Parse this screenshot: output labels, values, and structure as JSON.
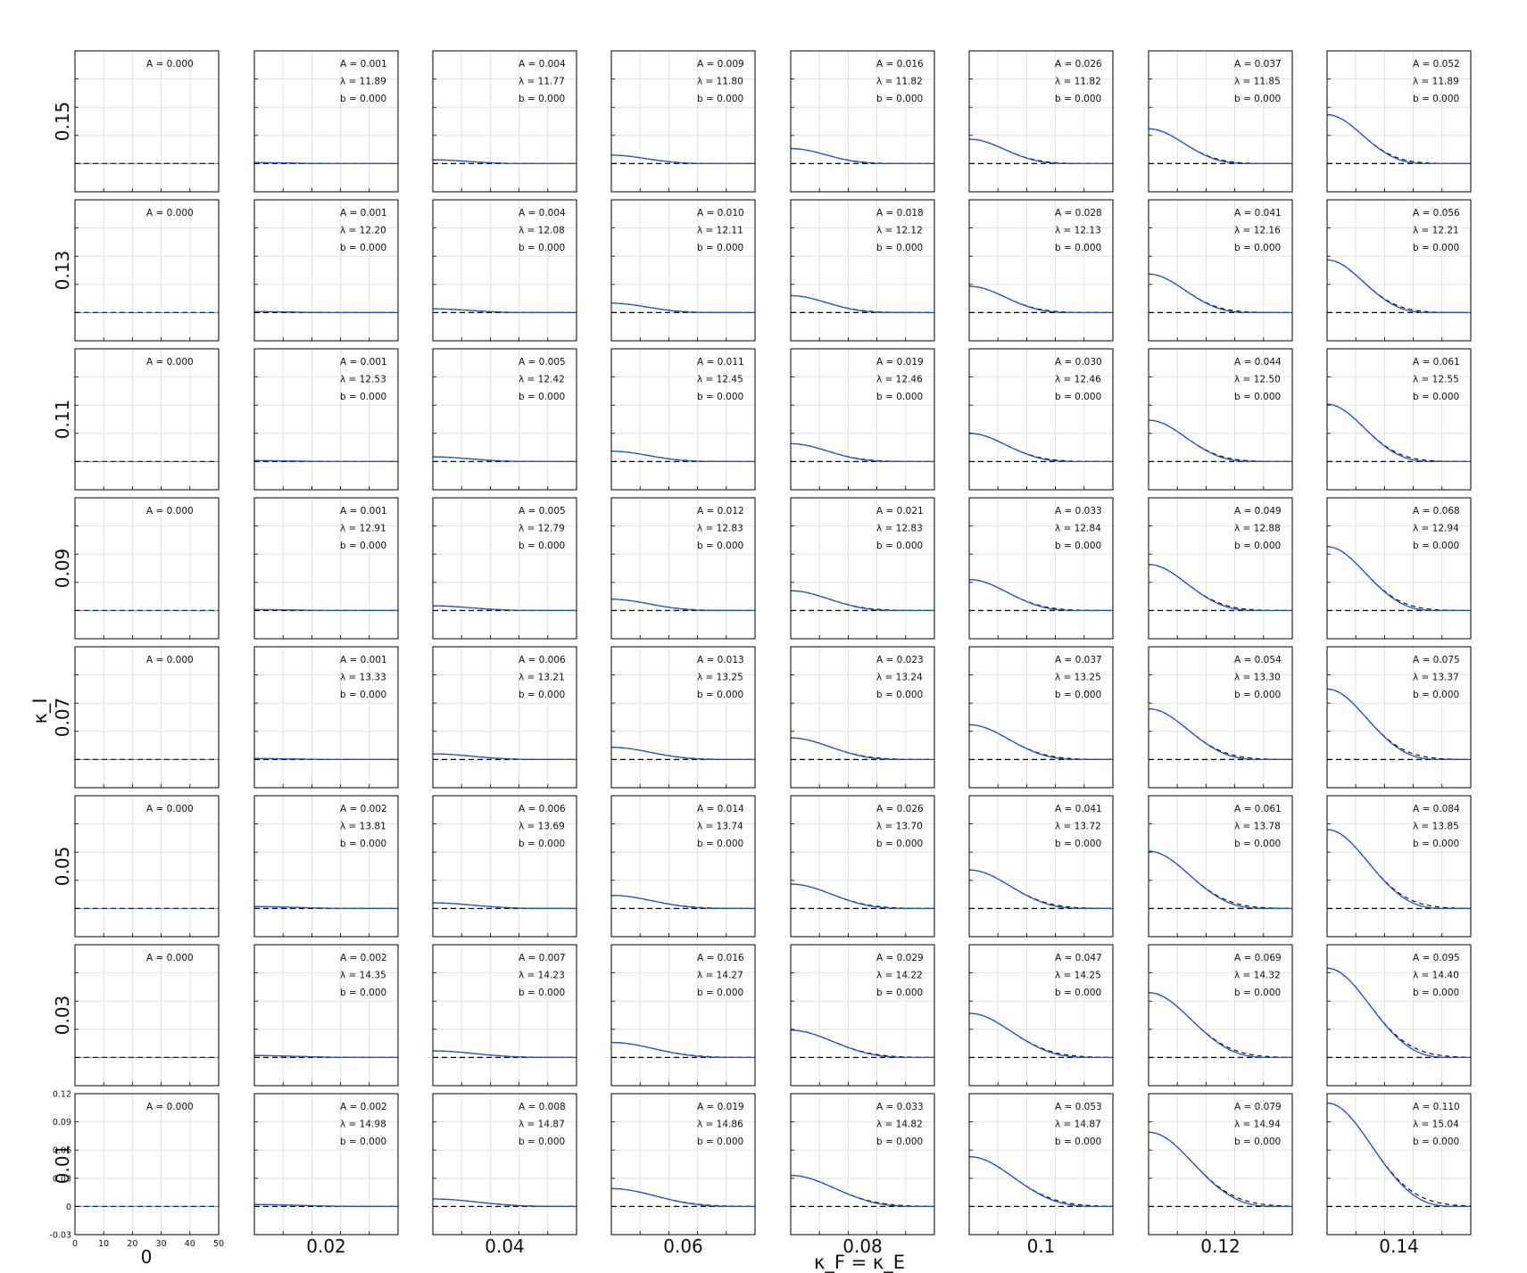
{
  "chart_data": {
    "type": "line",
    "xlabel": "κ_F = κ_E",
    "ylabel": "κ_I",
    "column_labels": [
      "0",
      "0.02",
      "0.04",
      "0.06",
      "0.08",
      "0.1",
      "0.12",
      "0.14"
    ],
    "row_labels": [
      "0.15",
      "0.13",
      "0.11",
      "0.09",
      "0.07",
      "0.05",
      "0.03",
      "0.01"
    ],
    "xlim": [
      0,
      50
    ],
    "ylim": [
      -0.03,
      0.12
    ],
    "xticks": [
      0,
      10,
      20,
      30,
      40,
      50
    ],
    "yticks": [
      -0.03,
      0,
      0.03,
      0.06,
      0.09,
      0.12
    ],
    "xtick_labels": [
      "0",
      "10",
      "20",
      "30",
      "40",
      "50"
    ],
    "ytick_labels": [
      "-0.03",
      "0",
      "0.03",
      "0.06",
      "0.09",
      "0.12"
    ],
    "grid": true,
    "series_styles": {
      "data": "#1f4fd8",
      "fit": "#000000",
      "baseline": "#000000"
    },
    "panel_params": [
      [
        "A = 0.000",
        "A = 0.001|λ = 11.89|b = 0.000",
        "A = 0.004|λ = 11.77|b = 0.000",
        "A = 0.009|λ = 11.80|b = 0.000",
        "A = 0.016|λ = 11.82|b = 0.000",
        "A = 0.026|λ = 11.82|b = 0.000",
        "A = 0.037|λ = 11.85|b = 0.000",
        "A = 0.052|λ = 11.89|b = 0.000"
      ],
      [
        "A = 0.000",
        "A = 0.001|λ = 12.20|b = 0.000",
        "A = 0.004|λ = 12.08|b = 0.000",
        "A = 0.010|λ = 12.11|b = 0.000",
        "A = 0.018|λ = 12.12|b = 0.000",
        "A = 0.028|λ = 12.13|b = 0.000",
        "A = 0.041|λ = 12.16|b = 0.000",
        "A = 0.056|λ = 12.21|b = 0.000"
      ],
      [
        "A = 0.000",
        "A = 0.001|λ = 12.53|b = 0.000",
        "A = 0.005|λ = 12.42|b = 0.000",
        "A = 0.011|λ = 12.45|b = 0.000",
        "A = 0.019|λ = 12.46|b = 0.000",
        "A = 0.030|λ = 12.46|b = 0.000",
        "A = 0.044|λ = 12.50|b = 0.000",
        "A = 0.061|λ = 12.55|b = 0.000"
      ],
      [
        "A = 0.000",
        "A = 0.001|λ = 12.91|b = 0.000",
        "A = 0.005|λ = 12.79|b = 0.000",
        "A = 0.012|λ = 12.83|b = 0.000",
        "A = 0.021|λ = 12.83|b = 0.000",
        "A = 0.033|λ = 12.84|b = 0.000",
        "A = 0.049|λ = 12.88|b = 0.000",
        "A = 0.068|λ = 12.94|b = 0.000"
      ],
      [
        "A = 0.000",
        "A = 0.001|λ = 13.33|b = 0.000",
        "A = 0.006|λ = 13.21|b = 0.000",
        "A = 0.013|λ = 13.25|b = 0.000",
        "A = 0.023|λ = 13.24|b = 0.000",
        "A = 0.037|λ = 13.25|b = 0.000",
        "A = 0.054|λ = 13.30|b = 0.000",
        "A = 0.075|λ = 13.37|b = 0.000"
      ],
      [
        "A = 0.000",
        "A = 0.002|λ = 13.81|b = 0.000",
        "A = 0.006|λ = 13.69|b = 0.000",
        "A = 0.014|λ = 13.74|b = 0.000",
        "A = 0.026|λ = 13.70|b = 0.000",
        "A = 0.041|λ = 13.72|b = 0.000",
        "A = 0.061|λ = 13.78|b = 0.000",
        "A = 0.084|λ = 13.85|b = 0.000"
      ],
      [
        "A = 0.000",
        "A = 0.002|λ = 14.35|b = 0.000",
        "A = 0.007|λ = 14.23|b = 0.000",
        "A = 0.016|λ = 14.27|b = 0.000",
        "A = 0.029|λ = 14.22|b = 0.000",
        "A = 0.047|λ = 14.25|b = 0.000",
        "A = 0.069|λ = 14.32|b = 0.000",
        "A = 0.095|λ = 14.40|b = 0.000"
      ],
      [
        "A = 0.000",
        "A = 0.002|λ = 14.98|b = 0.000",
        "A = 0.008|λ = 14.87|b = 0.000",
        "A = 0.019|λ = 14.86|b = 0.000",
        "A = 0.033|λ = 14.82|b = 0.000",
        "A = 0.053|λ = 14.87|b = 0.000",
        "A = 0.079|λ = 14.94|b = 0.000",
        "A = 0.110|λ = 15.04|b = 0.000"
      ]
    ]
  }
}
